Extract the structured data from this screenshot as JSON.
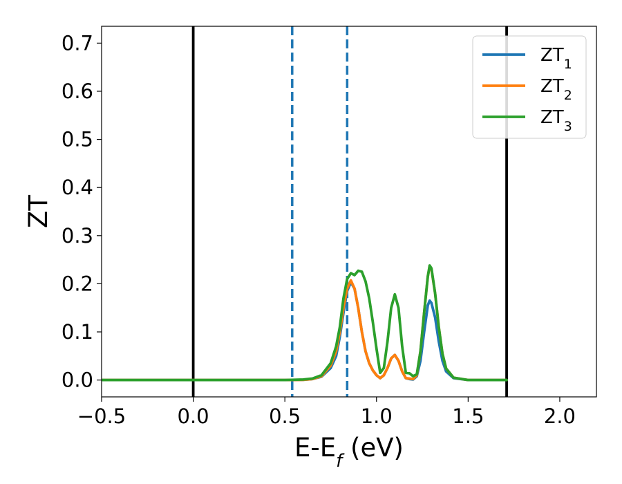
{
  "chart_data": {
    "type": "line",
    "xlabel": {
      "main": "E-E",
      "sub": "f",
      "tail": " (eV)"
    },
    "ylabel": "ZT",
    "xlim": [
      -0.5,
      2.2
    ],
    "ylim": [
      -0.035,
      0.735
    ],
    "x_ticks": [
      {
        "value": -0.5,
        "label": "−0.5"
      },
      {
        "value": 0.0,
        "label": "0.0"
      },
      {
        "value": 0.5,
        "label": "0.5"
      },
      {
        "value": 1.0,
        "label": "1.0"
      },
      {
        "value": 1.5,
        "label": "1.5"
      },
      {
        "value": 2.0,
        "label": "2.0"
      }
    ],
    "y_ticks": [
      {
        "value": 0.0,
        "label": "0.0"
      },
      {
        "value": 0.1,
        "label": "0.1"
      },
      {
        "value": 0.2,
        "label": "0.2"
      },
      {
        "value": 0.3,
        "label": "0.3"
      },
      {
        "value": 0.4,
        "label": "0.4"
      },
      {
        "value": 0.5,
        "label": "0.5"
      },
      {
        "value": 0.6,
        "label": "0.6"
      },
      {
        "value": 0.7,
        "label": "0.7"
      }
    ],
    "vlines": [
      {
        "x": 0.0,
        "color": "#000000",
        "style": "solid"
      },
      {
        "x": 1.71,
        "color": "#000000",
        "style": "solid"
      },
      {
        "x": 0.54,
        "color": "#1f77b4",
        "style": "dashed"
      },
      {
        "x": 0.84,
        "color": "#1f77b4",
        "style": "dashed"
      }
    ],
    "legend_position": "top-right",
    "grid": false,
    "series": [
      {
        "name": "ZT",
        "sub": "1",
        "color": "#1f77b4",
        "points": [
          [
            -0.5,
            0
          ],
          [
            0.5,
            0
          ],
          [
            0.6,
            0.0005
          ],
          [
            0.65,
            0.002
          ],
          [
            0.7,
            0.007
          ],
          [
            0.75,
            0.025
          ],
          [
            0.78,
            0.05
          ],
          [
            0.8,
            0.09
          ],
          [
            0.82,
            0.14
          ],
          [
            0.84,
            0.185
          ],
          [
            0.86,
            0.203
          ],
          [
            0.88,
            0.19
          ],
          [
            0.9,
            0.15
          ],
          [
            0.92,
            0.1
          ],
          [
            0.94,
            0.06
          ],
          [
            0.96,
            0.035
          ],
          [
            0.98,
            0.02
          ],
          [
            1.0,
            0.01
          ],
          [
            1.02,
            0.004
          ],
          [
            1.04,
            0.01
          ],
          [
            1.06,
            0.025
          ],
          [
            1.08,
            0.045
          ],
          [
            1.1,
            0.052
          ],
          [
            1.12,
            0.04
          ],
          [
            1.14,
            0.018
          ],
          [
            1.16,
            0.004
          ],
          [
            1.18,
            0.002
          ],
          [
            1.2,
            0.001
          ],
          [
            1.22,
            0.008
          ],
          [
            1.24,
            0.04
          ],
          [
            1.26,
            0.1
          ],
          [
            1.28,
            0.155
          ],
          [
            1.29,
            0.165
          ],
          [
            1.3,
            0.16
          ],
          [
            1.32,
            0.13
          ],
          [
            1.34,
            0.08
          ],
          [
            1.36,
            0.04
          ],
          [
            1.38,
            0.018
          ],
          [
            1.42,
            0.004
          ],
          [
            1.5,
            0
          ],
          [
            1.71,
            0
          ]
        ]
      },
      {
        "name": "ZT",
        "sub": "2",
        "color": "#ff7f0e",
        "points": [
          [
            -0.5,
            0
          ],
          [
            0.5,
            0
          ],
          [
            0.6,
            0.0005
          ],
          [
            0.65,
            0.002
          ],
          [
            0.7,
            0.008
          ],
          [
            0.75,
            0.03
          ],
          [
            0.78,
            0.06
          ],
          [
            0.8,
            0.1
          ],
          [
            0.82,
            0.15
          ],
          [
            0.84,
            0.19
          ],
          [
            0.86,
            0.207
          ],
          [
            0.88,
            0.19
          ],
          [
            0.9,
            0.15
          ],
          [
            0.92,
            0.1
          ],
          [
            0.94,
            0.06
          ],
          [
            0.96,
            0.035
          ],
          [
            0.98,
            0.02
          ],
          [
            1.0,
            0.01
          ],
          [
            1.02,
            0.004
          ],
          [
            1.04,
            0.01
          ],
          [
            1.06,
            0.025
          ],
          [
            1.08,
            0.045
          ],
          [
            1.1,
            0.052
          ],
          [
            1.12,
            0.04
          ],
          [
            1.14,
            0.018
          ],
          [
            1.16,
            0.004
          ],
          [
            1.18,
            0.003
          ],
          [
            1.2,
            0.002
          ],
          [
            1.22,
            0.01
          ],
          [
            1.24,
            0.06
          ],
          [
            1.26,
            0.14
          ],
          [
            1.28,
            0.215
          ],
          [
            1.29,
            0.237
          ],
          [
            1.3,
            0.23
          ],
          [
            1.32,
            0.18
          ],
          [
            1.34,
            0.11
          ],
          [
            1.36,
            0.055
          ],
          [
            1.38,
            0.024
          ],
          [
            1.42,
            0.005
          ],
          [
            1.5,
            0
          ],
          [
            1.71,
            0
          ]
        ]
      },
      {
        "name": "ZT",
        "sub": "3",
        "color": "#2ca02c",
        "points": [
          [
            -0.5,
            0
          ],
          [
            0.5,
            0
          ],
          [
            0.6,
            0.001
          ],
          [
            0.65,
            0.003
          ],
          [
            0.7,
            0.01
          ],
          [
            0.75,
            0.035
          ],
          [
            0.78,
            0.07
          ],
          [
            0.8,
            0.11
          ],
          [
            0.82,
            0.17
          ],
          [
            0.84,
            0.21
          ],
          [
            0.86,
            0.222
          ],
          [
            0.88,
            0.218
          ],
          [
            0.9,
            0.227
          ],
          [
            0.92,
            0.225
          ],
          [
            0.94,
            0.205
          ],
          [
            0.96,
            0.17
          ],
          [
            0.98,
            0.12
          ],
          [
            1.0,
            0.065
          ],
          [
            1.02,
            0.015
          ],
          [
            1.04,
            0.025
          ],
          [
            1.06,
            0.08
          ],
          [
            1.08,
            0.15
          ],
          [
            1.1,
            0.178
          ],
          [
            1.12,
            0.15
          ],
          [
            1.14,
            0.07
          ],
          [
            1.16,
            0.015
          ],
          [
            1.18,
            0.014
          ],
          [
            1.2,
            0.008
          ],
          [
            1.22,
            0.012
          ],
          [
            1.24,
            0.06
          ],
          [
            1.26,
            0.14
          ],
          [
            1.28,
            0.215
          ],
          [
            1.29,
            0.238
          ],
          [
            1.3,
            0.232
          ],
          [
            1.32,
            0.18
          ],
          [
            1.34,
            0.11
          ],
          [
            1.36,
            0.055
          ],
          [
            1.38,
            0.024
          ],
          [
            1.42,
            0.005
          ],
          [
            1.5,
            0
          ],
          [
            1.71,
            0
          ]
        ]
      }
    ]
  }
}
